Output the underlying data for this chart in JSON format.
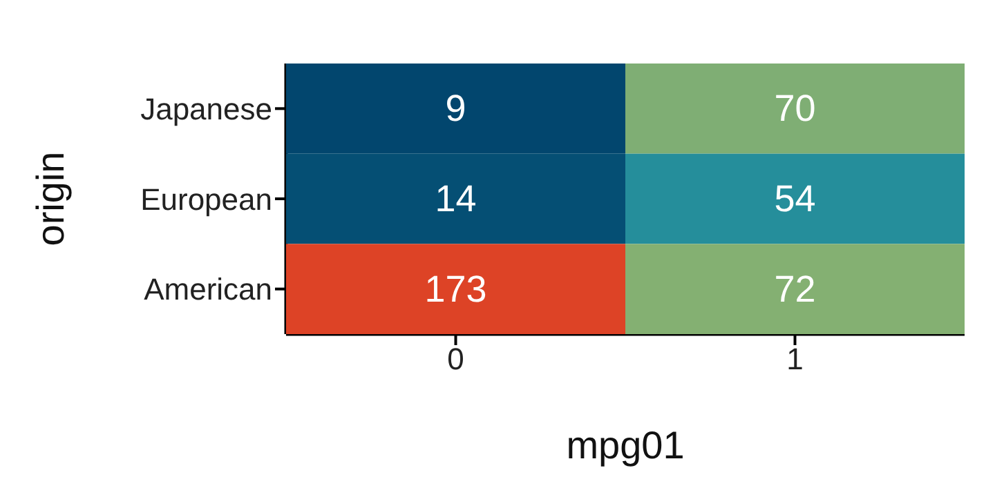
{
  "chart_data": {
    "type": "heatmap",
    "xlabel": "mpg01",
    "ylabel": "origin",
    "categories": [
      "0",
      "1"
    ],
    "y_categories": [
      "Japanese",
      "European",
      "American"
    ],
    "cells": [
      [
        9,
        70
      ],
      [
        14,
        54
      ],
      [
        173,
        72
      ]
    ],
    "colors": [
      [
        "#02466e",
        "#7fae74"
      ],
      [
        "#054f74",
        "#258e9b"
      ],
      [
        "#dd4326",
        "#84b072"
      ]
    ],
    "data_labels": true
  }
}
